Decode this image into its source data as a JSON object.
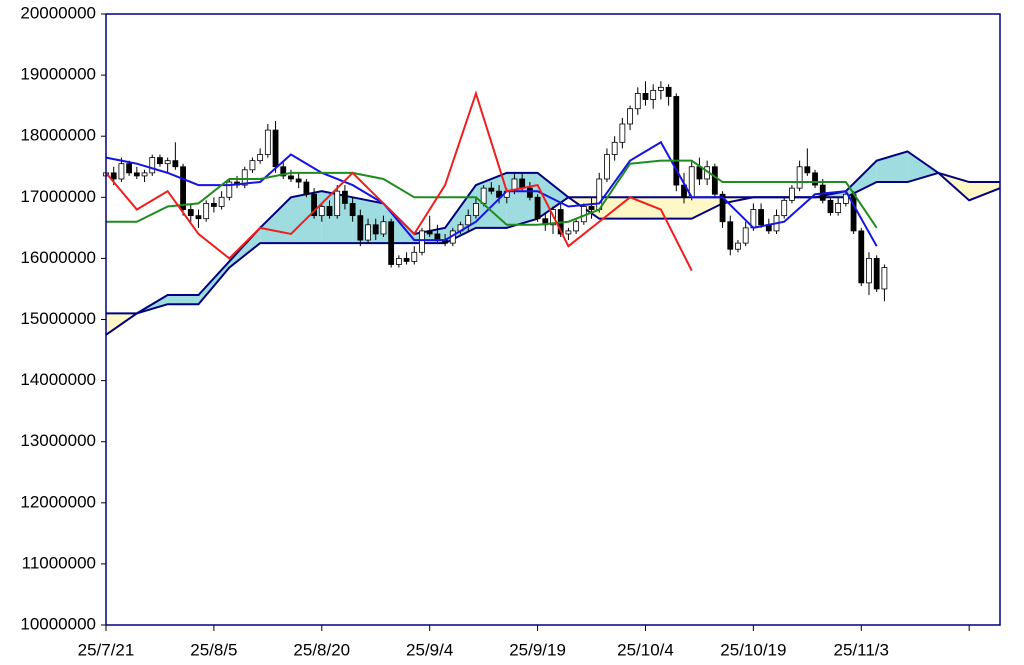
{
  "chart_data": {
    "type": "candlestick",
    "xlim": [
      0,
      116
    ],
    "xticks": [
      {
        "value": 0,
        "label": "25/7/21"
      },
      {
        "value": 14,
        "label": "25/8/5"
      },
      {
        "value": 28,
        "label": "25/8/20"
      },
      {
        "value": 42,
        "label": "25/9/4"
      },
      {
        "value": 56,
        "label": "25/9/19"
      },
      {
        "value": 70,
        "label": "25/10/4"
      },
      {
        "value": 84,
        "label": "25/10/19"
      },
      {
        "value": 98,
        "label": "25/11/3"
      },
      {
        "value": 112,
        "label": null
      }
    ],
    "ylim": [
      10000000,
      20000000
    ],
    "yticks": [
      10000000,
      11000000,
      12000000,
      13000000,
      14000000,
      15000000,
      16000000,
      17000000,
      18000000,
      19000000,
      20000000
    ],
    "up_color": "#ffffff",
    "down_color": "#000000",
    "candles": {
      "open": [
        17350000,
        17400000,
        17300000,
        17550000,
        17400000,
        17350000,
        17400000,
        17650000,
        17550000,
        17600000,
        17500000,
        16800000,
        16700000,
        16650000,
        16900000,
        16850000,
        17000000,
        17250000,
        17200000,
        17450000,
        17600000,
        17700000,
        18100000,
        17500000,
        17350000,
        17300000,
        17250000,
        17050000,
        16700000,
        16850000,
        16700000,
        17100000,
        16900000,
        16700000,
        16300000,
        16550000,
        16400000,
        16600000,
        15900000,
        16000000,
        15950000,
        16100000,
        16450000,
        16400000,
        16300000,
        16250000,
        16450000,
        16550000,
        16700000,
        16900000,
        17150000,
        17100000,
        17000000,
        17100000,
        17300000,
        17150000,
        17000000,
        16650000,
        16550000,
        16800000,
        16400000,
        16450000,
        16600000,
        16850000,
        16800000,
        17300000,
        17700000,
        17900000,
        18200000,
        18450000,
        18700000,
        18600000,
        18750000,
        18800000,
        18650000,
        17200000,
        17000000,
        17500000,
        17300000,
        17500000,
        17050000,
        16600000,
        16150000,
        16250000,
        16500000,
        16800000,
        16550000,
        16450000,
        16700000,
        16950000,
        17150000,
        17500000,
        17400000,
        17200000,
        16950000,
        16750000,
        16900000,
        17050000,
        16450000,
        15600000,
        16000000,
        15500000
      ],
      "high": [
        17450000,
        17500000,
        17650000,
        17600000,
        17500000,
        17450000,
        17700000,
        17700000,
        17650000,
        17900000,
        17550000,
        16900000,
        16800000,
        16950000,
        17000000,
        17100000,
        17300000,
        17350000,
        17500000,
        17650000,
        17800000,
        18200000,
        18250000,
        17600000,
        17450000,
        17400000,
        17300000,
        17150000,
        16900000,
        16950000,
        17200000,
        17200000,
        17000000,
        16800000,
        16650000,
        16650000,
        16700000,
        16650000,
        16050000,
        16100000,
        16200000,
        16500000,
        16700000,
        16550000,
        16400000,
        16500000,
        16600000,
        16800000,
        17000000,
        17200000,
        17250000,
        17200000,
        17150000,
        17400000,
        17400000,
        17250000,
        17050000,
        16750000,
        16850000,
        16900000,
        16500000,
        16650000,
        16900000,
        17000000,
        17400000,
        17800000,
        18000000,
        18300000,
        18500000,
        18800000,
        18900000,
        18850000,
        18900000,
        18850000,
        18700000,
        17400000,
        17600000,
        17650000,
        17600000,
        17550000,
        17100000,
        16700000,
        16300000,
        16600000,
        16900000,
        16900000,
        16650000,
        16800000,
        17000000,
        17200000,
        17600000,
        17800000,
        17450000,
        17300000,
        17000000,
        17000000,
        17100000,
        17100000,
        16500000,
        16100000,
        16050000,
        15900000
      ],
      "low": [
        17250000,
        17200000,
        17250000,
        17350000,
        17300000,
        17250000,
        17350000,
        17500000,
        17400000,
        17450000,
        16700000,
        16600000,
        16500000,
        16600000,
        16750000,
        16800000,
        16950000,
        17150000,
        17150000,
        17400000,
        17550000,
        17650000,
        17400000,
        17300000,
        17250000,
        17150000,
        17000000,
        16650000,
        16600000,
        16650000,
        16650000,
        16800000,
        16600000,
        16200000,
        16250000,
        16300000,
        16350000,
        15850000,
        15850000,
        15900000,
        15900000,
        16050000,
        16350000,
        16250000,
        16200000,
        16200000,
        16400000,
        16450000,
        16650000,
        16850000,
        17050000,
        16900000,
        16900000,
        17050000,
        17100000,
        16950000,
        16600000,
        16450000,
        16400000,
        16350000,
        16300000,
        16400000,
        16550000,
        16650000,
        16750000,
        17250000,
        17600000,
        17800000,
        18100000,
        18350000,
        18500000,
        18450000,
        18600000,
        18500000,
        17100000,
        16900000,
        16950000,
        17200000,
        17200000,
        17000000,
        16500000,
        16050000,
        16100000,
        16200000,
        16450000,
        16500000,
        16400000,
        16400000,
        16650000,
        16900000,
        17100000,
        17350000,
        17150000,
        16900000,
        16700000,
        16700000,
        16850000,
        16400000,
        15550000,
        15400000,
        15450000,
        15300000
      ],
      "close": [
        17400000,
        17300000,
        17550000,
        17400000,
        17350000,
        17400000,
        17650000,
        17550000,
        17600000,
        17500000,
        16800000,
        16700000,
        16650000,
        16900000,
        16850000,
        17000000,
        17250000,
        17200000,
        17450000,
        17600000,
        17700000,
        18100000,
        17500000,
        17350000,
        17300000,
        17250000,
        17050000,
        16700000,
        16850000,
        16700000,
        17100000,
        16900000,
        16700000,
        16300000,
        16550000,
        16400000,
        16600000,
        15900000,
        16000000,
        15950000,
        16100000,
        16450000,
        16400000,
        16300000,
        16250000,
        16450000,
        16550000,
        16700000,
        16900000,
        17150000,
        17100000,
        17000000,
        17100000,
        17300000,
        17150000,
        17000000,
        16650000,
        16550000,
        16800000,
        16400000,
        16450000,
        16600000,
        16850000,
        16800000,
        17300000,
        17700000,
        17900000,
        18200000,
        18450000,
        18700000,
        18600000,
        18750000,
        18800000,
        18650000,
        17200000,
        17000000,
        17500000,
        17300000,
        17500000,
        17050000,
        16600000,
        16150000,
        16250000,
        16500000,
        16800000,
        16550000,
        16450000,
        16700000,
        16950000,
        17150000,
        17500000,
        17400000,
        17200000,
        16950000,
        16750000,
        16900000,
        17050000,
        16450000,
        15600000,
        16000000,
        15500000,
        15850000
      ]
    },
    "cloud": {
      "line_color": "#000080",
      "up_fill": "#9fdcdf",
      "down_fill": "#fff8c6",
      "x": [
        0,
        4,
        8,
        12,
        16,
        20,
        24,
        28,
        32,
        36,
        40,
        44,
        48,
        52,
        56,
        60,
        64,
        68,
        72,
        76,
        80,
        84,
        88,
        92,
        96,
        100,
        104,
        108,
        112,
        116
      ],
      "span_a": [
        14750000,
        15100000,
        15400000,
        15400000,
        15950000,
        16500000,
        17000000,
        17100000,
        17000000,
        16900000,
        16400000,
        16500000,
        17200000,
        17400000,
        17400000,
        17000000,
        16650000,
        16650000,
        16650000,
        16650000,
        16900000,
        17000000,
        17000000,
        17000000,
        17100000,
        17600000,
        17750000,
        17400000,
        16950000,
        17150000
      ],
      "span_b": [
        15100000,
        15100000,
        15250000,
        15250000,
        15850000,
        16250000,
        16250000,
        16250000,
        16250000,
        16250000,
        16250000,
        16250000,
        16500000,
        16500000,
        16650000,
        17000000,
        17000000,
        17000000,
        17000000,
        17000000,
        17000000,
        17000000,
        17000000,
        17000000,
        17000000,
        17250000,
        17250000,
        17400000,
        17250000,
        17250000
      ]
    },
    "lines": [
      {
        "color": "#1414e6",
        "x": [
          0,
          4,
          8,
          12,
          16,
          20,
          24,
          28,
          32,
          36,
          40,
          44,
          48,
          52,
          56,
          60,
          64,
          68,
          72,
          76,
          80,
          84,
          88,
          92,
          96,
          100
        ],
        "values": [
          17650000,
          17550000,
          17400000,
          17200000,
          17200000,
          17250000,
          17700000,
          17400000,
          17200000,
          16900000,
          16300000,
          16300000,
          16600000,
          17100000,
          17100000,
          16850000,
          16900000,
          17600000,
          17900000,
          17000000,
          17000000,
          16500000,
          16600000,
          17050000,
          17100000,
          16200000
        ]
      },
      {
        "color": "#1e8c1e",
        "x": [
          0,
          4,
          8,
          12,
          16,
          20,
          24,
          28,
          32,
          36,
          40,
          44,
          48,
          52,
          56,
          60,
          64,
          68,
          72,
          76,
          80,
          84,
          88,
          92,
          96,
          100
        ],
        "values": [
          16600000,
          16600000,
          16850000,
          16900000,
          17300000,
          17300000,
          17400000,
          17400000,
          17400000,
          17300000,
          17000000,
          17000000,
          17000000,
          16550000,
          16550000,
          16600000,
          16800000,
          17550000,
          17600000,
          17600000,
          17250000,
          17250000,
          17250000,
          17250000,
          17250000,
          16500000
        ]
      },
      {
        "color": "#f01e1e",
        "x": [
          0,
          4,
          8,
          12,
          16,
          20,
          24,
          28,
          32,
          36,
          40,
          44,
          48,
          52,
          56,
          60,
          64,
          68,
          72,
          76
        ],
        "values": [
          17400000,
          16800000,
          17100000,
          16400000,
          16000000,
          16500000,
          16400000,
          16900000,
          17400000,
          16900000,
          16400000,
          17200000,
          18700000,
          17100000,
          17200000,
          16200000,
          16600000,
          17000000,
          16800000,
          15800000
        ]
      }
    ]
  }
}
